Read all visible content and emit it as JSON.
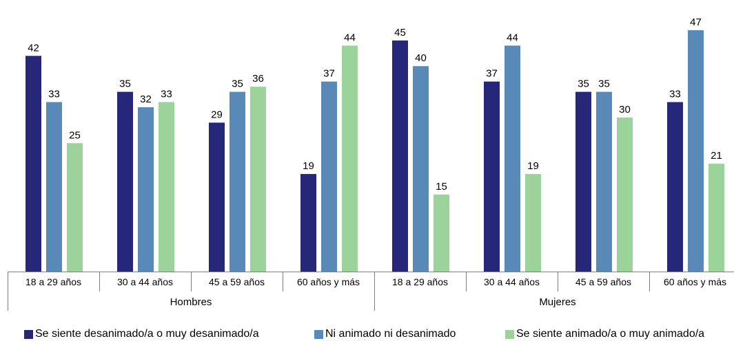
{
  "chart_data": {
    "type": "bar",
    "groups": [
      "Hombres",
      "Mujeres"
    ],
    "categories": [
      "18 a 29 años",
      "30 a 44 años",
      "45 a 59 años",
      "60 años y más",
      "18 a 29 años",
      "30 a 44 años",
      "45 a 59 años",
      "60 años y más"
    ],
    "series": [
      {
        "name": "Se siente desanimado/a o muy desanimado/a",
        "color": "#27277a",
        "values": [
          42,
          35,
          29,
          19,
          45,
          37,
          35,
          33
        ]
      },
      {
        "name": "Ni animado ni desanimado",
        "color": "#5889b7",
        "values": [
          33,
          32,
          35,
          37,
          40,
          44,
          35,
          47
        ]
      },
      {
        "name": "Se siente animado/a o muy animado/a",
        "color": "#9bd39a",
        "values": [
          25,
          33,
          36,
          44,
          15,
          19,
          30,
          21
        ]
      }
    ],
    "ylim": [
      0,
      47
    ],
    "grid": false,
    "legend_position": "bottom"
  }
}
